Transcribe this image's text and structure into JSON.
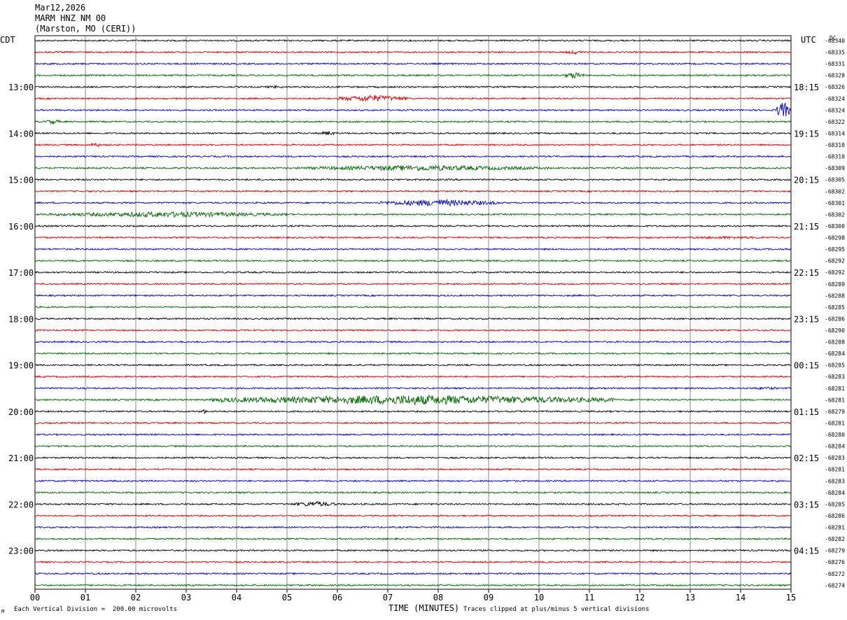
{
  "header": {
    "date": "Mar12,2026",
    "station": "MARM HNZ NM 00",
    "location": "(Marston, MO (CERI))"
  },
  "left_zone": "CDT",
  "right_zone": "UTC",
  "dc_label": "DC",
  "footer": {
    "scale_note": "Each Vertical Division =  200.00 microvolts",
    "clip_note": "Traces clipped at plus/minus 5 vertical divisions",
    "corner_mark": "M"
  },
  "colors": {
    "cycle": [
      "#000000",
      "#dd0000",
      "#0000cc",
      "#006600"
    ],
    "grid": "#888888"
  },
  "chart_data": {
    "type": "line",
    "title": "",
    "xlabel": "TIME (MINUTES)",
    "xlim": [
      0,
      15
    ],
    "x_ticks": [
      "00",
      "01",
      "02",
      "03",
      "04",
      "05",
      "06",
      "07",
      "08",
      "09",
      "10",
      "11",
      "12",
      "13",
      "14",
      "15"
    ],
    "rows_per_hour": 4,
    "minutes_per_row": 15,
    "grid": true,
    "left_time_labels": [
      "13:00",
      "14:00",
      "15:00",
      "16:00",
      "17:00",
      "18:00",
      "19:00",
      "20:00",
      "21:00",
      "22:00",
      "23:00"
    ],
    "right_time_labels": [
      "18:15",
      "19:15",
      "20:15",
      "21:15",
      "22:15",
      "23:15",
      "00:15",
      "01:15",
      "02:15",
      "03:15",
      "04:15"
    ],
    "dc_offsets": [
      "-68340",
      "-68335",
      "-68331",
      "-68328",
      "-68326",
      "-68324",
      "-68324",
      "-68322",
      "-68314",
      "-68310",
      "-68310",
      "-68309",
      "-68305",
      "-68302",
      "-68301",
      "-68302",
      "-68300",
      "-68298",
      "-68295",
      "-68292",
      "-68292",
      "-68289",
      "-68288",
      "-68285",
      "-68286",
      "-68290",
      "-68288",
      "-68284",
      "-68285",
      "-68283",
      "-68281",
      "-68281",
      "-68279",
      "-68281",
      "-68280",
      "-68284",
      "-68283",
      "-68281",
      "-68283",
      "-68284",
      "-68285",
      "-68286",
      "-68281",
      "-68282",
      "-68279",
      "-68276",
      "-68272",
      "-68274"
    ],
    "events": [
      {
        "row": 1,
        "start_min": 10.5,
        "end_min": 10.9,
        "amplitude": 3
      },
      {
        "row": 3,
        "start_min": 10.5,
        "end_min": 10.9,
        "amplitude": 5
      },
      {
        "row": 4,
        "start_min": 4.5,
        "end_min": 5.0,
        "amplitude": 2
      },
      {
        "row": 5,
        "start_min": 6.0,
        "end_min": 7.4,
        "amplitude": 5
      },
      {
        "row": 6,
        "start_min": 14.7,
        "end_min": 15.0,
        "amplitude": 12
      },
      {
        "row": 7,
        "start_min": 0.2,
        "end_min": 0.5,
        "amplitude": 4
      },
      {
        "row": 8,
        "start_min": 5.6,
        "end_min": 6.0,
        "amplitude": 3
      },
      {
        "row": 9,
        "start_min": 1.1,
        "end_min": 1.3,
        "amplitude": 4
      },
      {
        "row": 11,
        "start_min": 5.2,
        "end_min": 10.2,
        "amplitude": 4
      },
      {
        "row": 14,
        "start_min": 6.8,
        "end_min": 9.2,
        "amplitude": 5
      },
      {
        "row": 15,
        "start_min": 0.2,
        "end_min": 5.0,
        "amplitude": 4
      },
      {
        "row": 17,
        "start_min": 12.5,
        "end_min": 15.0,
        "amplitude": 2
      },
      {
        "row": 30,
        "start_min": 14.0,
        "end_min": 15.0,
        "amplitude": 2
      },
      {
        "row": 31,
        "start_min": 3.5,
        "end_min": 11.5,
        "amplitude": 7
      },
      {
        "row": 32,
        "start_min": 3.3,
        "end_min": 3.4,
        "amplitude": 4
      },
      {
        "row": 40,
        "start_min": 5.1,
        "end_min": 6.0,
        "amplitude": 4
      }
    ]
  }
}
